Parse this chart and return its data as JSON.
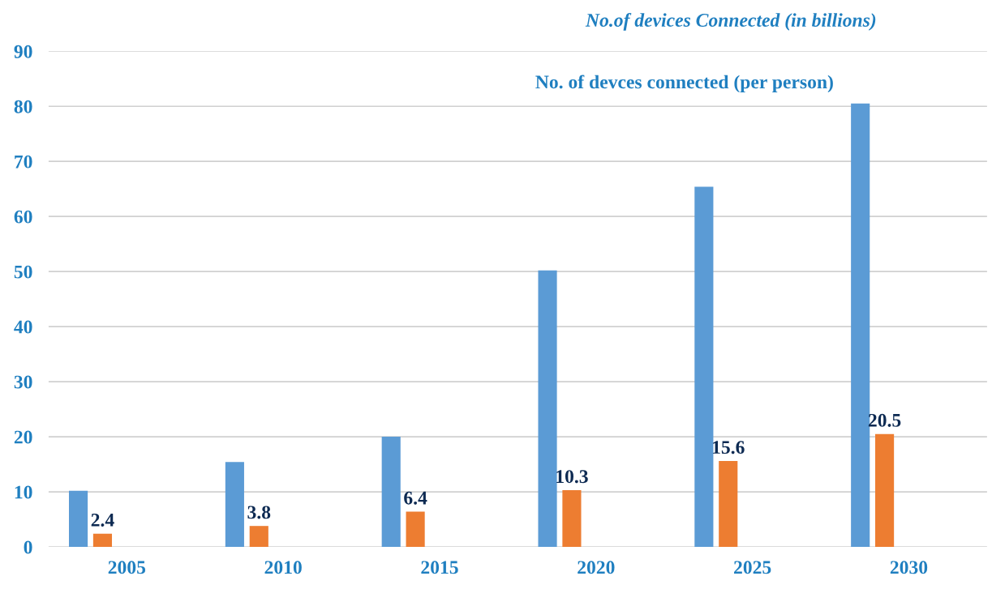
{
  "chart_data": {
    "type": "bar",
    "categories": [
      "2005",
      "2010",
      "2015",
      "2020",
      "2025",
      "2030"
    ],
    "series": [
      {
        "color": "#5b9bd5",
        "values": [
          10.2,
          15.4,
          20,
          50.2,
          65.4,
          80.5
        ]
      },
      {
        "color": "#ed7d31",
        "values": [
          2.4,
          3.8,
          6.4,
          10.3,
          15.6,
          20.5
        ],
        "value_labels": [
          "2.4",
          "3.8",
          "6.4",
          "10.3",
          "15.6",
          "20.5"
        ]
      }
    ],
    "ylim": [
      0,
      90
    ],
    "yticks": [
      0,
      10,
      20,
      30,
      40,
      50,
      60,
      70,
      80,
      90
    ],
    "grid": "y",
    "annotations": [
      "No.of devices Connected (in billions)",
      "No. of devces connected (per person)"
    ]
  }
}
